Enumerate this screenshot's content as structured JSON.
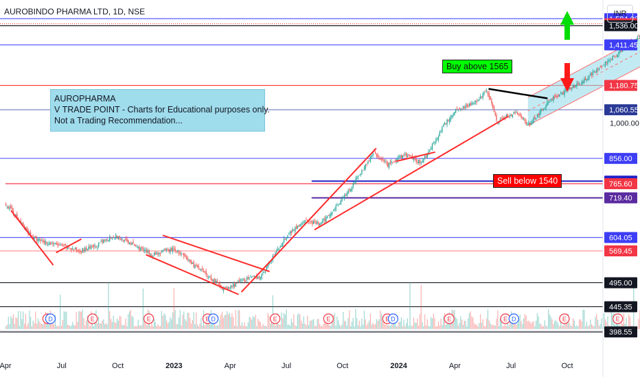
{
  "header": {
    "symbol_line": "AUROBINDO PHARMA LTD, 1D, NSE"
  },
  "currency_button": "INR",
  "note": {
    "line1": "AUROPHARMA",
    "line2": "V TRADE POINT - Charts for Educational purposes only.",
    "line3": "Not a Trading Recommendation..."
  },
  "buy_label": "Buy above 1565",
  "sell_label": "Sell below 1540",
  "colors": {
    "up": "#26a69a",
    "down": "#ef5350",
    "trend": "#ff2a2a",
    "channel": "#8fd8ea",
    "blue_line": "#5b5bff",
    "red_line": "#ff3030"
  },
  "chart_data": {
    "type": "line",
    "title": "AUROBINDO PHARMA LTD, 1D, NSE",
    "y_scale": "log",
    "ylim": [
      380,
      1720
    ],
    "x_ticks": [
      "Apr",
      "Jul",
      "Oct",
      "2023",
      "Apr",
      "Jul",
      "Oct",
      "2024",
      "Apr",
      "Jul",
      "Oct"
    ],
    "y_axis_tick_labels": [
      "1,000.00"
    ],
    "price_path": [
      {
        "t": 0.0,
        "y": 700
      },
      {
        "t": 0.5,
        "y": 600
      },
      {
        "t": 1.3,
        "y": 570
      },
      {
        "t": 1.6,
        "y": 580
      },
      {
        "t": 1.9,
        "y": 610
      },
      {
        "t": 2.2,
        "y": 590
      },
      {
        "t": 2.6,
        "y": 560
      },
      {
        "t": 3.0,
        "y": 575
      },
      {
        "t": 3.2,
        "y": 550
      },
      {
        "t": 3.6,
        "y": 510
      },
      {
        "t": 3.9,
        "y": 480
      },
      {
        "t": 4.2,
        "y": 500
      },
      {
        "t": 4.55,
        "y": 510
      },
      {
        "t": 5.0,
        "y": 610
      },
      {
        "t": 5.3,
        "y": 650
      },
      {
        "t": 5.6,
        "y": 640
      },
      {
        "t": 6.1,
        "y": 740
      },
      {
        "t": 6.55,
        "y": 880
      },
      {
        "t": 6.8,
        "y": 830
      },
      {
        "t": 7.1,
        "y": 870
      },
      {
        "t": 7.4,
        "y": 840
      },
      {
        "t": 7.8,
        "y": 990
      },
      {
        "t": 8.0,
        "y": 1060
      },
      {
        "t": 8.4,
        "y": 1100
      },
      {
        "t": 8.55,
        "y": 1160
      },
      {
        "t": 8.75,
        "y": 1010
      },
      {
        "t": 9.1,
        "y": 1050
      },
      {
        "t": 9.3,
        "y": 990
      },
      {
        "t": 9.7,
        "y": 1110
      },
      {
        "t": 10.2,
        "y": 1190
      },
      {
        "t": 10.6,
        "y": 1280
      },
      {
        "t": 11.1,
        "y": 1420
      },
      {
        "t": 11.6,
        "y": 1560
      },
      {
        "t": 11.85,
        "y": 1549.4
      }
    ],
    "channel": {
      "upper": [
        {
          "t": 9.3,
          "y": 1120
        },
        {
          "t": 12.2,
          "y": 1640
        }
      ],
      "lower": [
        {
          "t": 9.3,
          "y": 990
        },
        {
          "t": 12.2,
          "y": 1440
        }
      ],
      "mid": [
        {
          "t": 9.3,
          "y": 1055
        },
        {
          "t": 12.2,
          "y": 1540
        }
      ]
    },
    "trendlines": [
      {
        "color": "red",
        "points": [
          {
            "t": 0.1,
            "y": 680
          },
          {
            "t": 0.85,
            "y": 535
          }
        ]
      },
      {
        "color": "red",
        "points": [
          {
            "t": 0.9,
            "y": 565
          },
          {
            "t": 1.35,
            "y": 600
          }
        ]
      },
      {
        "color": "red",
        "points": [
          {
            "t": 2.5,
            "y": 560
          },
          {
            "t": 4.15,
            "y": 470
          }
        ]
      },
      {
        "color": "red",
        "points": [
          {
            "t": 2.8,
            "y": 610
          },
          {
            "t": 4.7,
            "y": 520
          }
        ]
      },
      {
        "color": "red",
        "points": [
          {
            "t": 4.2,
            "y": 475
          },
          {
            "t": 6.6,
            "y": 895
          }
        ]
      },
      {
        "color": "red",
        "points": [
          {
            "t": 5.5,
            "y": 625
          },
          {
            "t": 8.95,
            "y": 1030
          }
        ]
      },
      {
        "color": "red",
        "points": [
          {
            "t": 6.95,
            "y": 845
          },
          {
            "t": 7.65,
            "y": 880
          }
        ]
      },
      {
        "color": "black",
        "points": [
          {
            "t": 8.6,
            "y": 1163
          },
          {
            "t": 9.65,
            "y": 1115
          }
        ]
      }
    ],
    "horizontal_levels": [
      {
        "value": 1584.0,
        "label": "1,584.00",
        "line_color": "#5b5bff",
        "badge_color": "#3d3df5",
        "text_color": "#ffffff"
      },
      {
        "value": 1549.4,
        "label": "1,549.40",
        "line_color": "#f44336",
        "badge_color": "#f23645",
        "text_color": "#ffffff",
        "dotted": true
      },
      {
        "value": 1536.0,
        "label": "1,536.00",
        "line_color": "#131722",
        "badge_color": "#131722",
        "text_color": "#ffffff"
      },
      {
        "value": 1411.45,
        "label": "1,411.45",
        "line_color": "#5b5bff",
        "badge_color": "#3d3df5",
        "text_color": "#ffffff"
      },
      {
        "value": 1180.75,
        "label": "1,180.75",
        "line_color": "#ff3030",
        "badge_color": "#f23645",
        "text_color": "#ffffff"
      },
      {
        "value": 1060.55,
        "label": "1,060.55",
        "line_color": "#7b86c8",
        "badge_color": "#2a3a96",
        "text_color": "#ffffff"
      },
      {
        "value": 856.0,
        "label": "856.00",
        "line_color": "#5b5bff",
        "badge_color": "#3d3df5",
        "text_color": "#ffffff"
      },
      {
        "value": 774.4,
        "label": "774.40",
        "line_color": "#2020c8",
        "badge_color": "#2020c8",
        "text_color": "#ffffff",
        "from_t": 5.45
      },
      {
        "value": 765.6,
        "label": "765.60",
        "line_color": "#f23645",
        "badge_color": "#f23645",
        "text_color": "#ffffff",
        "from_t": 0
      },
      {
        "value": 719.4,
        "label": "719.40",
        "line_color": "#5a2aa0",
        "badge_color": "#5a2aa0",
        "text_color": "#ffffff",
        "from_t": 5.45
      },
      {
        "value": 604.05,
        "label": "604.05",
        "line_color": "#5b5bff",
        "badge_color": "#3d3df5",
        "text_color": "#ffffff"
      },
      {
        "value": 569.45,
        "label": "569.45",
        "line_color": "#ff8a8a",
        "badge_color": "#f23645",
        "text_color": "#ffffff"
      },
      {
        "value": 495.0,
        "label": "495.00",
        "line_color": "#131722",
        "badge_color": "#131722",
        "text_color": "#ffffff"
      },
      {
        "value": 445.35,
        "label": "445.35",
        "line_color": "#131722",
        "badge_color": "#131722",
        "text_color": "#ffffff"
      },
      {
        "value": 398.55,
        "label": "398.55",
        "line_color": "#131722",
        "badge_color": "#131722",
        "text_color": "#ffffff"
      }
    ],
    "event_markers": [
      {
        "t": 0.75,
        "label": "E"
      },
      {
        "t": 0.8,
        "label": "D"
      },
      {
        "t": 1.55,
        "label": "E"
      },
      {
        "t": 2.55,
        "label": "E"
      },
      {
        "t": 3.6,
        "label": "E"
      },
      {
        "t": 3.7,
        "label": "D"
      },
      {
        "t": 4.8,
        "label": "E"
      },
      {
        "t": 5.75,
        "label": "E"
      },
      {
        "t": 6.8,
        "label": "E"
      },
      {
        "t": 6.9,
        "label": "D"
      },
      {
        "t": 7.9,
        "label": "E"
      },
      {
        "t": 8.9,
        "label": "E"
      },
      {
        "t": 9.05,
        "label": "D"
      },
      {
        "t": 9.95,
        "label": "E"
      },
      {
        "t": 10.9,
        "label": "E"
      },
      {
        "t": 11.75,
        "label": "E"
      },
      {
        "t": 12.0,
        "label": "⚡"
      }
    ]
  }
}
